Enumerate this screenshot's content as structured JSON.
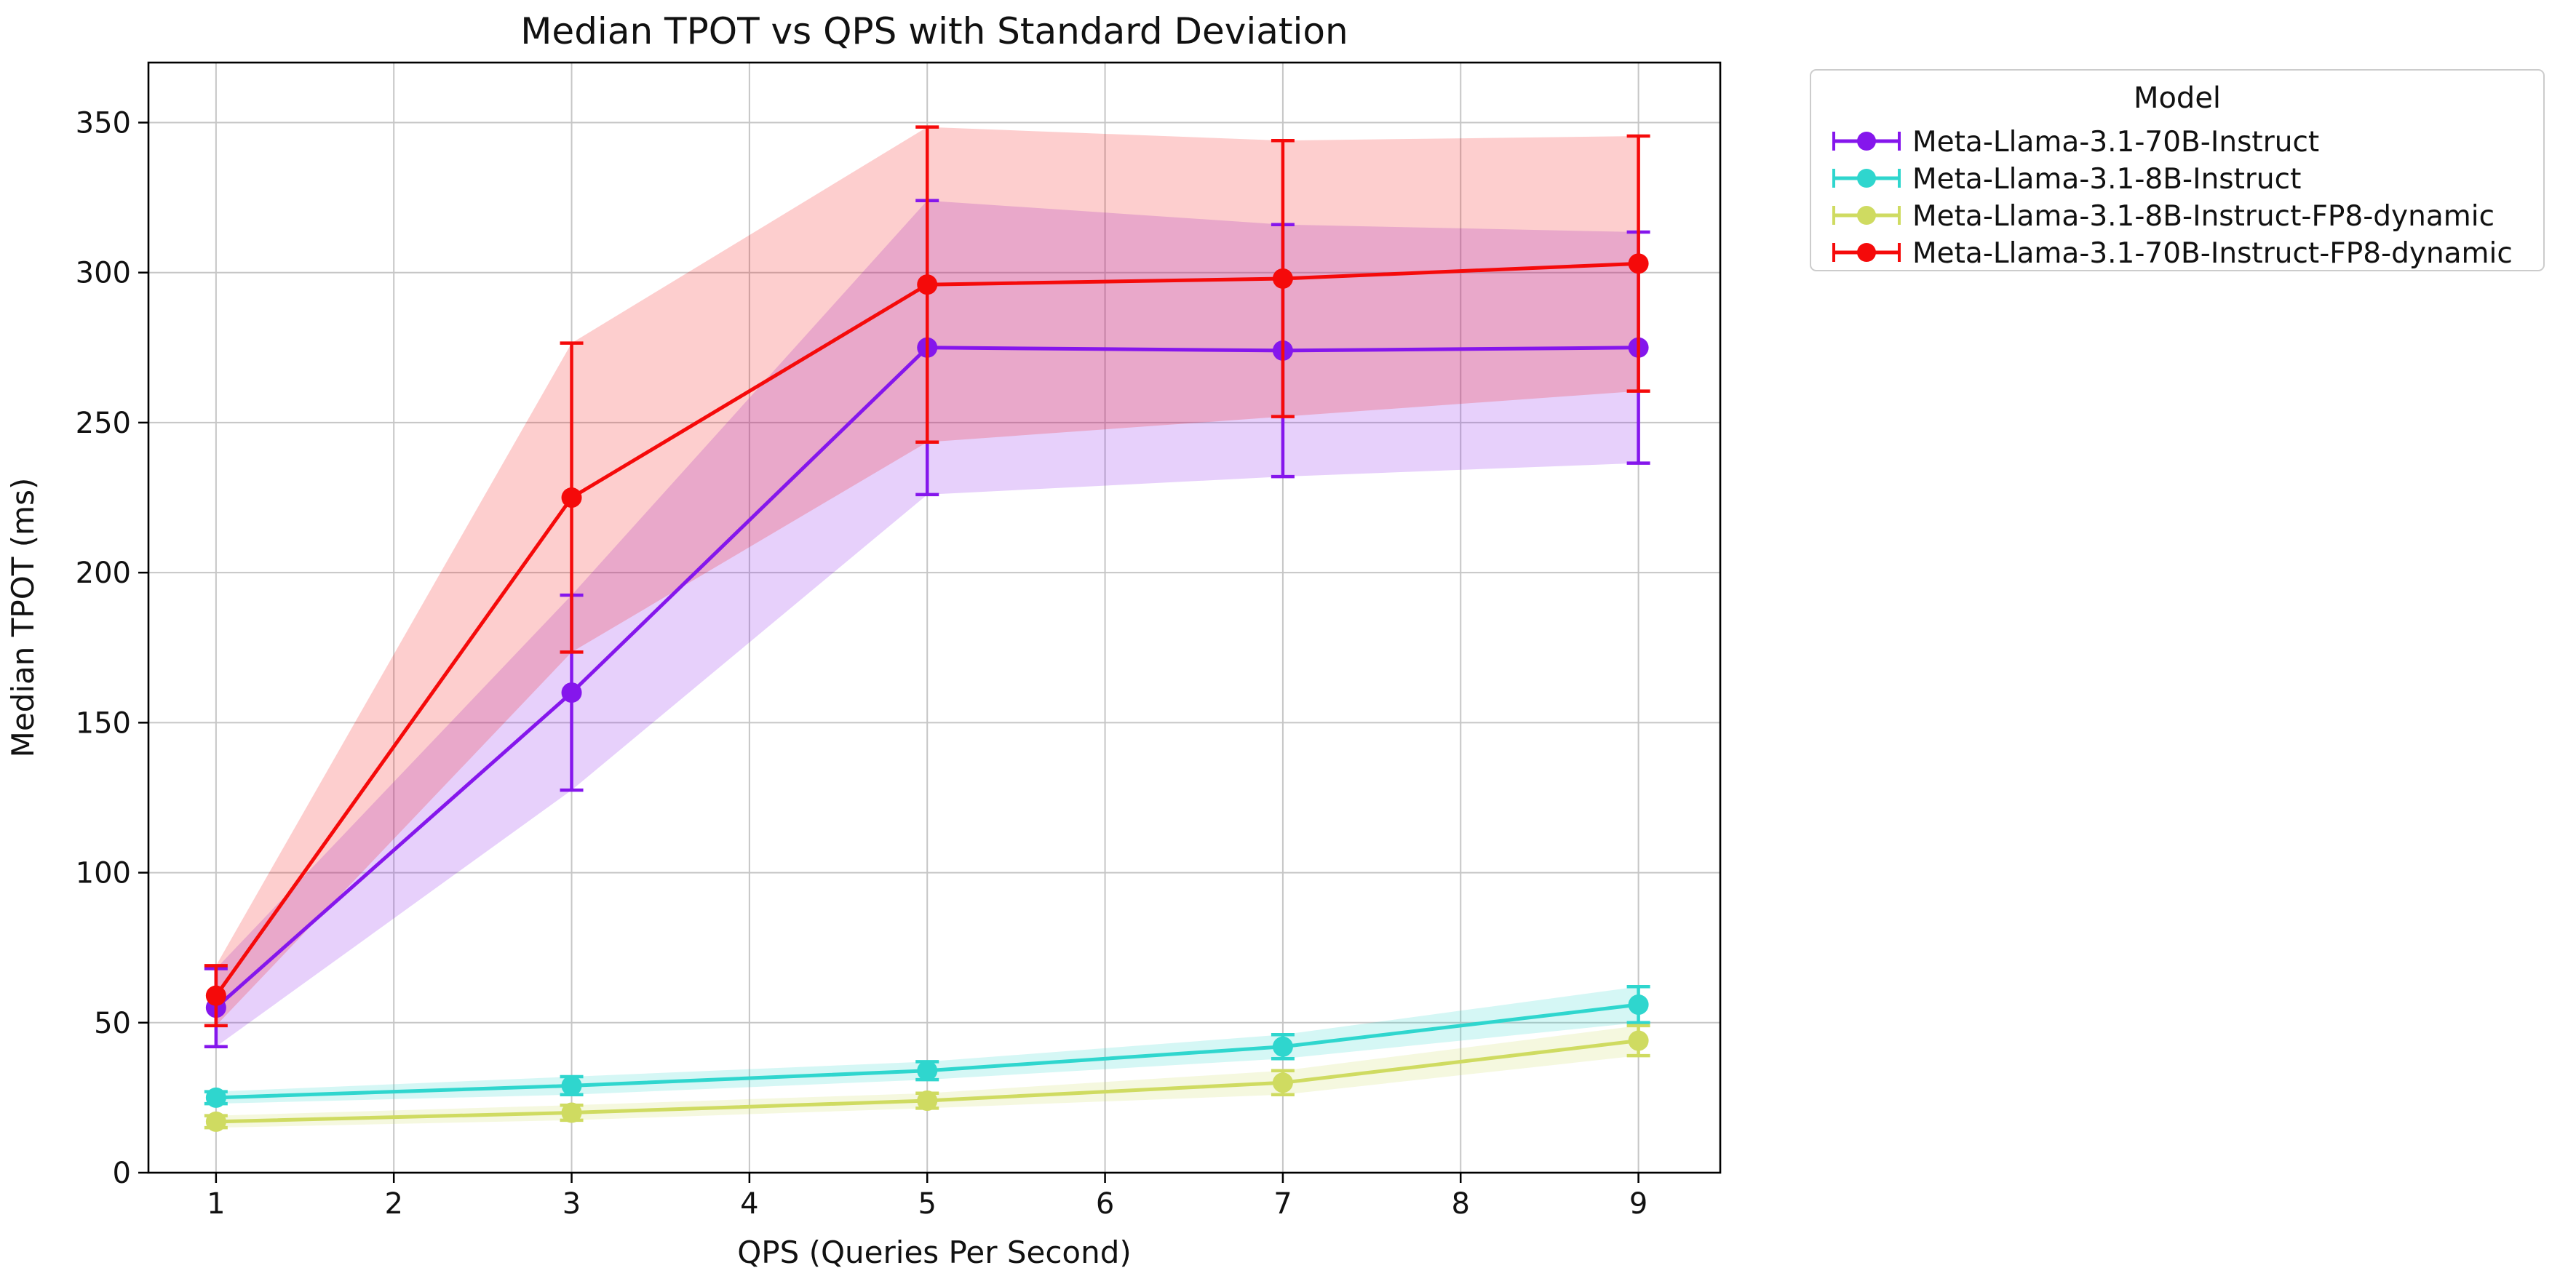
{
  "chart_data": {
    "type": "line",
    "title": "Median TPOT vs QPS with Standard Deviation",
    "xlabel": "QPS (Queries Per Second)",
    "ylabel": "Median TPOT (ms)",
    "x": [
      1,
      3,
      5,
      7,
      9
    ],
    "xticks": [
      1,
      2,
      3,
      4,
      5,
      6,
      7,
      8,
      9
    ],
    "yticks": [
      0,
      50,
      100,
      150,
      200,
      250,
      300,
      350
    ],
    "xlim": [
      0.62,
      9.46
    ],
    "ylim": [
      0,
      370
    ],
    "grid": true,
    "error_band_opacity": 0.2,
    "legend": {
      "title": "Model",
      "position": "outside-upper-right"
    },
    "series": [
      {
        "name": "Meta-Llama-3.1-70B-Instruct",
        "color": "#8516EC",
        "x": [
          1,
          3,
          5,
          7,
          9
        ],
        "median_tpot_ms": [
          55,
          160,
          275,
          274,
          275
        ],
        "std": [
          13,
          32.5,
          49,
          42,
          38.5
        ]
      },
      {
        "name": "Meta-Llama-3.1-8B-Instruct",
        "color": "#2FD6CE",
        "x": [
          1,
          3,
          5,
          7,
          9
        ],
        "median_tpot_ms": [
          25,
          29,
          34,
          42,
          56
        ],
        "std": [
          2,
          3,
          3,
          4,
          6
        ]
      },
      {
        "name": "Meta-Llama-3.1-8B-Instruct-FP8-dynamic",
        "color": "#CFDB61",
        "x": [
          1,
          3,
          5,
          7,
          9
        ],
        "median_tpot_ms": [
          17,
          20,
          24,
          30,
          44
        ],
        "std": [
          2,
          2.5,
          2.5,
          4,
          5
        ]
      },
      {
        "name": "Meta-Llama-3.1-70B-Instruct-FP8-dynamic",
        "color": "#F50A0A",
        "x": [
          1,
          3,
          5,
          7,
          9
        ],
        "median_tpot_ms": [
          59,
          225,
          296,
          298,
          303
        ],
        "std": [
          10,
          51.5,
          52.5,
          46,
          42.5
        ]
      }
    ]
  }
}
